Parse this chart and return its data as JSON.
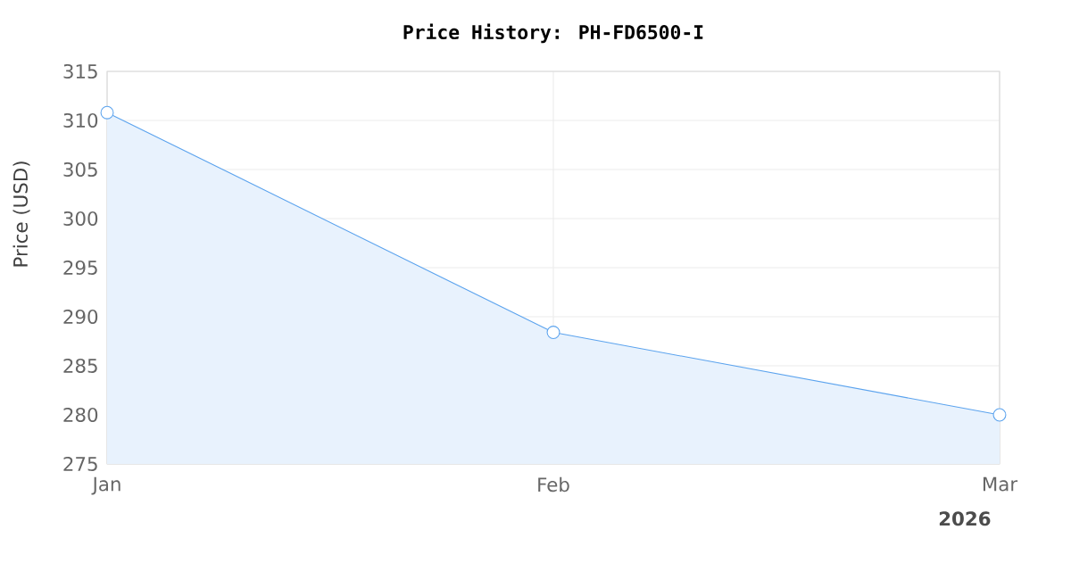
{
  "chart_data": {
    "type": "area",
    "title": "Price History: PH-FD6500-I",
    "ylabel": "Price (USD)",
    "categories": [
      "Jan",
      "Feb",
      "Mar"
    ],
    "series": [
      {
        "color": "#5ba3ee",
        "values": [
          310.8,
          288.4,
          280.0
        ]
      }
    ],
    "ylim": [
      275,
      315
    ],
    "yticks": [
      275,
      280,
      285,
      290,
      295,
      300,
      305,
      310,
      315
    ],
    "grid": true,
    "marker": "circle",
    "line_style": "solid",
    "annotations": [
      "2026"
    ]
  }
}
